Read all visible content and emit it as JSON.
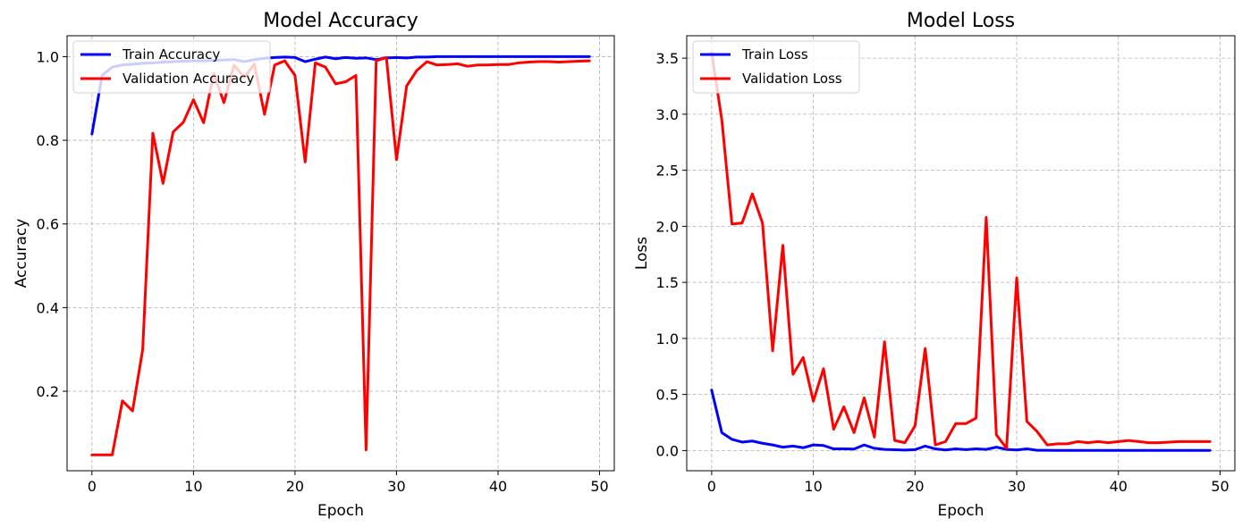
{
  "chart_data": [
    {
      "type": "line",
      "title": "Model Accuracy",
      "xlabel": "Epoch",
      "ylabel": "Accuracy",
      "xlim": [
        -2.45,
        51.45
      ],
      "ylim": [
        0.01,
        1.05
      ],
      "xticks": [
        0,
        10,
        20,
        30,
        40,
        50
      ],
      "yticks": [
        0.2,
        0.4,
        0.6,
        0.8,
        1.0
      ],
      "ytick_format": 1,
      "grid": true,
      "legend_placement": "upper-left",
      "x": [
        0,
        1,
        2,
        3,
        4,
        5,
        6,
        7,
        8,
        9,
        10,
        11,
        12,
        13,
        14,
        15,
        16,
        17,
        18,
        19,
        20,
        21,
        22,
        23,
        24,
        25,
        26,
        27,
        28,
        29,
        30,
        31,
        32,
        33,
        34,
        35,
        36,
        37,
        38,
        39,
        40,
        41,
        42,
        43,
        44,
        45,
        46,
        47,
        48,
        49
      ],
      "series": [
        {
          "name": "Train Accuracy",
          "color": "#0000ff",
          "values": [
            0.815,
            0.955,
            0.975,
            0.98,
            0.982,
            0.984,
            0.985,
            0.987,
            0.988,
            0.989,
            0.99,
            0.99,
            0.991,
            0.992,
            0.993,
            0.988,
            0.993,
            0.996,
            0.998,
            0.999,
            0.998,
            0.988,
            0.994,
            0.999,
            0.995,
            0.998,
            0.996,
            0.997,
            0.993,
            0.997,
            0.998,
            0.997,
            0.999,
            0.999,
            1.0,
            1.0,
            1.0,
            1.0,
            1.0,
            1.0,
            1.0,
            1.0,
            1.0,
            1.0,
            1.0,
            1.0,
            1.0,
            1.0,
            1.0,
            1.0
          ]
        },
        {
          "name": "Validation Accuracy",
          "color": "#ff0000",
          "values": [
            0.048,
            0.048,
            0.048,
            0.177,
            0.153,
            0.3,
            0.817,
            0.697,
            0.82,
            0.843,
            0.897,
            0.842,
            0.96,
            0.89,
            0.98,
            0.95,
            0.982,
            0.862,
            0.98,
            0.99,
            0.955,
            0.748,
            0.985,
            0.975,
            0.935,
            0.94,
            0.955,
            0.06,
            0.99,
            0.998,
            0.754,
            0.93,
            0.967,
            0.988,
            0.98,
            0.981,
            0.983,
            0.977,
            0.98,
            0.98,
            0.981,
            0.981,
            0.985,
            0.987,
            0.988,
            0.988,
            0.987,
            0.988,
            0.989,
            0.99
          ]
        }
      ]
    },
    {
      "type": "line",
      "title": "Model Loss",
      "xlabel": "Epoch",
      "ylabel": "Loss",
      "xlim": [
        -2.45,
        51.45
      ],
      "ylim": [
        -0.18,
        3.7
      ],
      "xticks": [
        0,
        10,
        20,
        30,
        40,
        50
      ],
      "yticks": [
        0.0,
        0.5,
        1.0,
        1.5,
        2.0,
        2.5,
        3.0,
        3.5
      ],
      "ytick_format": 1,
      "grid": true,
      "legend_placement": "upper-left",
      "x": [
        0,
        1,
        2,
        3,
        4,
        5,
        6,
        7,
        8,
        9,
        10,
        11,
        12,
        13,
        14,
        15,
        16,
        17,
        18,
        19,
        20,
        21,
        22,
        23,
        24,
        25,
        26,
        27,
        28,
        29,
        30,
        31,
        32,
        33,
        34,
        35,
        36,
        37,
        38,
        39,
        40,
        41,
        42,
        43,
        44,
        45,
        46,
        47,
        48,
        49
      ],
      "series": [
        {
          "name": "Train Loss",
          "color": "#0000ff",
          "values": [
            0.54,
            0.16,
            0.1,
            0.075,
            0.085,
            0.065,
            0.05,
            0.03,
            0.04,
            0.025,
            0.05,
            0.045,
            0.015,
            0.015,
            0.013,
            0.05,
            0.02,
            0.01,
            0.007,
            0.004,
            0.008,
            0.04,
            0.015,
            0.005,
            0.015,
            0.008,
            0.015,
            0.01,
            0.03,
            0.01,
            0.005,
            0.015,
            0.002,
            0.002,
            0.001,
            0.001,
            0.001,
            0.001,
            0.001,
            0.001,
            0.001,
            0.001,
            0.001,
            0.001,
            0.001,
            0.001,
            0.001,
            0.001,
            0.001,
            0.001
          ]
        },
        {
          "name": "Validation Loss",
          "color": "#ff0000",
          "values": [
            3.55,
            2.95,
            2.02,
            2.03,
            2.29,
            2.03,
            0.89,
            1.83,
            0.68,
            0.83,
            0.44,
            0.73,
            0.19,
            0.39,
            0.16,
            0.47,
            0.12,
            0.97,
            0.09,
            0.07,
            0.22,
            0.91,
            0.05,
            0.08,
            0.24,
            0.24,
            0.29,
            2.08,
            0.14,
            0.02,
            1.54,
            0.26,
            0.17,
            0.05,
            0.06,
            0.06,
            0.08,
            0.07,
            0.08,
            0.07,
            0.08,
            0.09,
            0.08,
            0.07,
            0.07,
            0.075,
            0.08,
            0.08,
            0.08,
            0.08
          ]
        }
      ]
    }
  ]
}
